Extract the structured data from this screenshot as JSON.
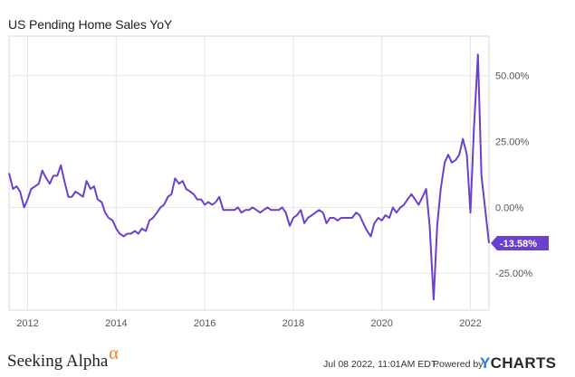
{
  "chart_data": {
    "type": "line",
    "title": "US Pending Home Sales YoY",
    "xlabel": "",
    "ylabel": "",
    "x_ticks": [
      "2012",
      "2014",
      "2016",
      "2018",
      "2020",
      "2022"
    ],
    "y_ticks": [
      "50.00%",
      "25.00%",
      "0.00%",
      "-25.00%"
    ],
    "xlim": [
      2011.58,
      2022.42
    ],
    "ylim": [
      -39,
      65
    ],
    "grid": true,
    "line_color": "#6b3fcf",
    "last_value_label": "-13.58%",
    "series": [
      {
        "name": "",
        "points": [
          [
            2011.58,
            13
          ],
          [
            2011.67,
            7
          ],
          [
            2011.75,
            8
          ],
          [
            2011.83,
            6
          ],
          [
            2011.92,
            0
          ],
          [
            2012.0,
            3
          ],
          [
            2012.08,
            7
          ],
          [
            2012.17,
            8
          ],
          [
            2012.25,
            9
          ],
          [
            2012.33,
            14
          ],
          [
            2012.42,
            11
          ],
          [
            2012.5,
            9
          ],
          [
            2012.58,
            12
          ],
          [
            2012.67,
            12
          ],
          [
            2012.75,
            16
          ],
          [
            2012.83,
            10
          ],
          [
            2012.92,
            4
          ],
          [
            2013.0,
            4
          ],
          [
            2013.08,
            6
          ],
          [
            2013.17,
            5
          ],
          [
            2013.25,
            4
          ],
          [
            2013.33,
            10
          ],
          [
            2013.42,
            7
          ],
          [
            2013.5,
            8
          ],
          [
            2013.58,
            3
          ],
          [
            2013.67,
            2
          ],
          [
            2013.75,
            -2
          ],
          [
            2013.83,
            -4
          ],
          [
            2013.92,
            -5
          ],
          [
            2014.0,
            -8
          ],
          [
            2014.08,
            -10
          ],
          [
            2014.17,
            -11
          ],
          [
            2014.25,
            -10
          ],
          [
            2014.33,
            -10
          ],
          [
            2014.42,
            -9
          ],
          [
            2014.5,
            -10
          ],
          [
            2014.58,
            -8
          ],
          [
            2014.67,
            -9
          ],
          [
            2014.75,
            -5
          ],
          [
            2014.83,
            -4
          ],
          [
            2014.92,
            -2
          ],
          [
            2015.0,
            0
          ],
          [
            2015.08,
            1
          ],
          [
            2015.17,
            4
          ],
          [
            2015.25,
            5
          ],
          [
            2015.33,
            11
          ],
          [
            2015.42,
            9
          ],
          [
            2015.5,
            10
          ],
          [
            2015.58,
            7
          ],
          [
            2015.67,
            6
          ],
          [
            2015.75,
            5
          ],
          [
            2015.83,
            3
          ],
          [
            2015.92,
            3
          ],
          [
            2016.0,
            1
          ],
          [
            2016.08,
            2
          ],
          [
            2016.17,
            1
          ],
          [
            2016.25,
            2
          ],
          [
            2016.33,
            4
          ],
          [
            2016.42,
            -1
          ],
          [
            2016.5,
            -1
          ],
          [
            2016.58,
            -1
          ],
          [
            2016.67,
            -1
          ],
          [
            2016.75,
            0
          ],
          [
            2016.83,
            -2
          ],
          [
            2016.92,
            -1
          ],
          [
            2017.0,
            -1
          ],
          [
            2017.08,
            0
          ],
          [
            2017.17,
            -1
          ],
          [
            2017.25,
            -2
          ],
          [
            2017.33,
            -1
          ],
          [
            2017.42,
            0
          ],
          [
            2017.5,
            -1
          ],
          [
            2017.58,
            -1
          ],
          [
            2017.67,
            -1
          ],
          [
            2017.75,
            0
          ],
          [
            2017.83,
            -2
          ],
          [
            2017.92,
            -7
          ],
          [
            2018.0,
            -4
          ],
          [
            2018.08,
            -3
          ],
          [
            2018.17,
            -1
          ],
          [
            2018.25,
            -6
          ],
          [
            2018.33,
            -4
          ],
          [
            2018.42,
            -3
          ],
          [
            2018.5,
            -2
          ],
          [
            2018.58,
            -1
          ],
          [
            2018.67,
            -2
          ],
          [
            2018.75,
            -6
          ],
          [
            2018.83,
            -4
          ],
          [
            2018.92,
            -4
          ],
          [
            2019.0,
            -5
          ],
          [
            2019.08,
            -4
          ],
          [
            2019.17,
            -4
          ],
          [
            2019.25,
            -4
          ],
          [
            2019.33,
            -4
          ],
          [
            2019.42,
            -2
          ],
          [
            2019.5,
            -3
          ],
          [
            2019.58,
            -6
          ],
          [
            2019.67,
            -9
          ],
          [
            2019.75,
            -11
          ],
          [
            2019.83,
            -6
          ],
          [
            2019.92,
            -4
          ],
          [
            2020.0,
            -5
          ],
          [
            2020.08,
            -3
          ],
          [
            2020.17,
            -4
          ],
          [
            2020.25,
            0
          ],
          [
            2020.33,
            -2
          ],
          [
            2020.42,
            0
          ],
          [
            2020.5,
            1
          ],
          [
            2020.58,
            3
          ],
          [
            2020.67,
            5
          ],
          [
            2020.75,
            3
          ],
          [
            2020.83,
            1
          ],
          [
            2020.92,
            4
          ],
          [
            2021.0,
            7
          ],
          [
            2021.08,
            -7
          ],
          [
            2021.17,
            -35
          ],
          [
            2021.25,
            -7
          ],
          [
            2021.33,
            7
          ],
          [
            2021.42,
            17
          ],
          [
            2021.5,
            20
          ],
          [
            2021.58,
            17
          ],
          [
            2021.67,
            18
          ],
          [
            2021.75,
            20
          ],
          [
            2021.83,
            26
          ],
          [
            2021.92,
            20
          ],
          [
            2022.0,
            -2
          ],
          [
            2022.08,
            30
          ],
          [
            2022.17,
            58
          ],
          [
            2022.25,
            12
          ],
          [
            2022.42,
            -13.58
          ]
        ]
      }
    ]
  },
  "footer": {
    "timestamp": "Jul 08 2022, 11:01AM EDT.",
    "powered_by": "Powered by",
    "brand_y": "Y",
    "brand_rest": "CHARTS"
  },
  "watermark": {
    "text": "Seeking Alpha",
    "symbol": "α"
  }
}
